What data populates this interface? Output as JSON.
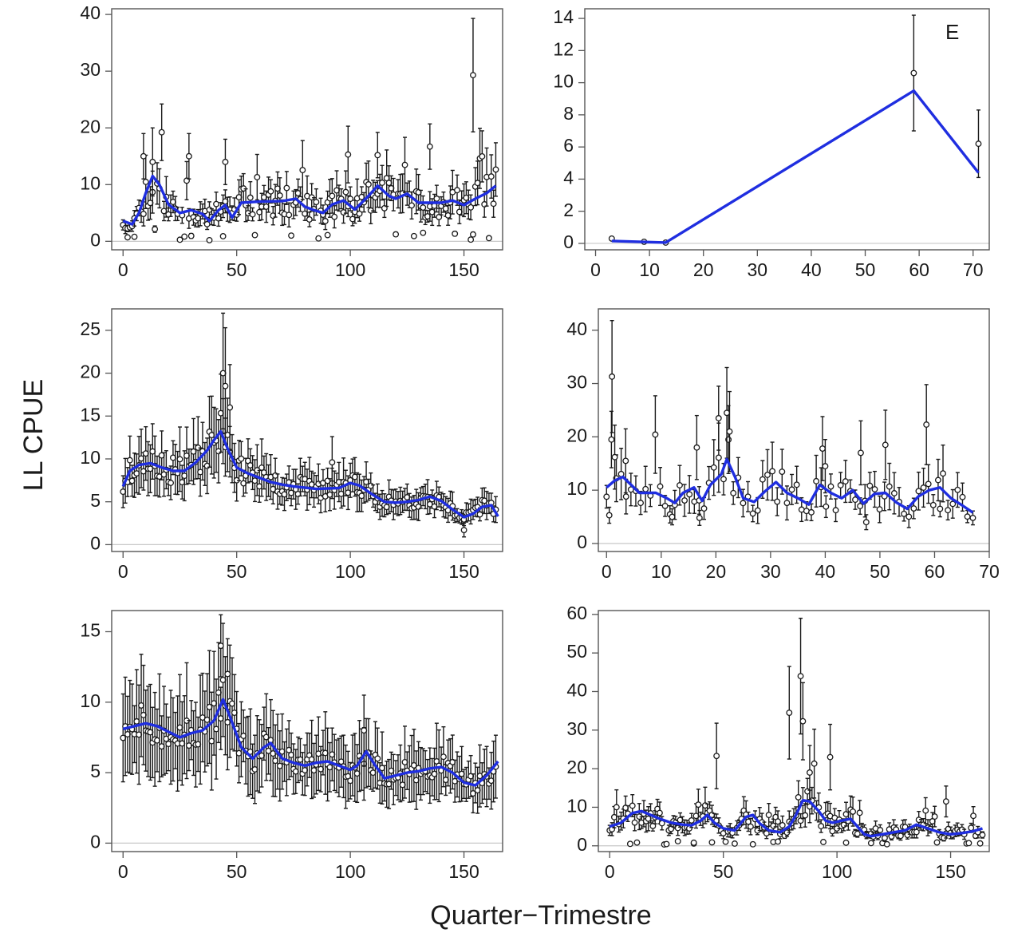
{
  "figure": {
    "ylabel": "LL CPUE",
    "xlabel": "Quarter−Trimestre"
  },
  "colors": {
    "trend": "#1f2ee0",
    "points": "#1a1a1a",
    "zero_line": "#c8c8c8",
    "frame": "#555555"
  },
  "chart_data": [
    {
      "id": "panel-1",
      "type": "scatter",
      "letter": "",
      "xlim": [
        -5,
        167
      ],
      "ylim": [
        -1.5,
        41
      ],
      "xticks": [
        0,
        50,
        100,
        150
      ],
      "yticks": [
        0,
        10,
        20,
        30,
        40
      ],
      "seed": 11,
      "points": {
        "n": 165,
        "xmax": 164,
        "noise": 0.38,
        "outlier_freq": 0.05,
        "err": 0.38,
        "low_freq": 0.07
      },
      "trend": [
        [
          0,
          3.6
        ],
        [
          4,
          3.0
        ],
        [
          7,
          5.0
        ],
        [
          10,
          8.5
        ],
        [
          13,
          11.5
        ],
        [
          16,
          10.0
        ],
        [
          20,
          6.5
        ],
        [
          25,
          5.0
        ],
        [
          30,
          5.5
        ],
        [
          35,
          4.8
        ],
        [
          38,
          3.6
        ],
        [
          42,
          5.5
        ],
        [
          45,
          6.4
        ],
        [
          48,
          4.2
        ],
        [
          52,
          6.8
        ],
        [
          60,
          7.0
        ],
        [
          70,
          7.1
        ],
        [
          76,
          7.5
        ],
        [
          80,
          6.1
        ],
        [
          84,
          5.5
        ],
        [
          88,
          5.0
        ],
        [
          92,
          6.5
        ],
        [
          97,
          7.2
        ],
        [
          102,
          5.6
        ],
        [
          108,
          8.0
        ],
        [
          112,
          9.8
        ],
        [
          117,
          8.0
        ],
        [
          120,
          7.5
        ],
        [
          125,
          8.4
        ],
        [
          130,
          6.8
        ],
        [
          140,
          6.8
        ],
        [
          145,
          7.2
        ],
        [
          150,
          6.4
        ],
        [
          155,
          7.5
        ],
        [
          160,
          8.5
        ],
        [
          164,
          9.8
        ]
      ],
      "highlights": [
        [
          154,
          29.3,
          10
        ],
        [
          135,
          16.7,
          4
        ],
        [
          99,
          15.3,
          5
        ],
        [
          112,
          15.2,
          4
        ],
        [
          29,
          15.0,
          4
        ],
        [
          9,
          15.0,
          4
        ],
        [
          13,
          14.0,
          6
        ],
        [
          45,
          14.0,
          4
        ],
        [
          153,
          0.3,
          0
        ],
        [
          38,
          0.2,
          0
        ],
        [
          2,
          0.7,
          0
        ],
        [
          5,
          0.8,
          0
        ],
        [
          44,
          0.9,
          0
        ],
        [
          90,
          1.1,
          0
        ],
        [
          132,
          1.5,
          0
        ]
      ]
    },
    {
      "id": "panel-2",
      "type": "scatter",
      "letter": "E",
      "xlim": [
        -2,
        73
      ],
      "ylim": [
        -0.4,
        14.6
      ],
      "xticks": [
        0,
        10,
        20,
        30,
        40,
        50,
        60,
        70
      ],
      "yticks": [
        0,
        2,
        4,
        6,
        8,
        10,
        12,
        14
      ],
      "seed": 0,
      "points": {
        "n": 0
      },
      "trend": [
        [
          3,
          0.15
        ],
        [
          13,
          0.05
        ],
        [
          59,
          9.5
        ],
        [
          71,
          4.4
        ]
      ],
      "highlights": [
        [
          3,
          0.3,
          0
        ],
        [
          9,
          0.1,
          0
        ],
        [
          13,
          0.05,
          0
        ],
        [
          59,
          10.6,
          3.6
        ],
        [
          71,
          6.2,
          2.1
        ]
      ]
    },
    {
      "id": "panel-3",
      "type": "scatter",
      "letter": "",
      "xlim": [
        -5,
        167
      ],
      "ylim": [
        -0.8,
        27.5
      ],
      "xticks": [
        0,
        50,
        100,
        150
      ],
      "yticks": [
        0,
        5,
        10,
        15,
        20,
        25
      ],
      "seed": 23,
      "points": {
        "n": 165,
        "xmax": 164,
        "noise": 0.18,
        "outlier_freq": 0.0,
        "err": 0.32,
        "low_freq": 0.0
      },
      "trend": [
        [
          0,
          6.8
        ],
        [
          3,
          8.6
        ],
        [
          7,
          9.3
        ],
        [
          12,
          9.5
        ],
        [
          17,
          9.0
        ],
        [
          22,
          8.6
        ],
        [
          27,
          8.6
        ],
        [
          32,
          9.6
        ],
        [
          37,
          11.0
        ],
        [
          40,
          12.2
        ],
        [
          43,
          13.2
        ],
        [
          46,
          11.2
        ],
        [
          50,
          9.0
        ],
        [
          55,
          8.3
        ],
        [
          60,
          7.8
        ],
        [
          65,
          7.3
        ],
        [
          70,
          7.0
        ],
        [
          75,
          6.8
        ],
        [
          85,
          6.5
        ],
        [
          95,
          6.6
        ],
        [
          100,
          7.2
        ],
        [
          104,
          6.9
        ],
        [
          110,
          5.8
        ],
        [
          115,
          5.0
        ],
        [
          120,
          4.9
        ],
        [
          125,
          5.0
        ],
        [
          130,
          5.2
        ],
        [
          135,
          5.6
        ],
        [
          140,
          5.1
        ],
        [
          145,
          4.1
        ],
        [
          150,
          3.2
        ],
        [
          154,
          3.6
        ],
        [
          158,
          4.4
        ],
        [
          162,
          4.6
        ],
        [
          165,
          3.3
        ]
      ],
      "highlights": [
        [
          44,
          20.0,
          7
        ],
        [
          45,
          18.5,
          6.8
        ],
        [
          47,
          16.0,
          5
        ],
        [
          92,
          9.6,
          3
        ],
        [
          150,
          1.7,
          0.8
        ]
      ]
    },
    {
      "id": "panel-4",
      "type": "scatter",
      "letter": "",
      "xlim": [
        -1.5,
        70
      ],
      "ylim": [
        -1.5,
        44
      ],
      "xticks": [
        0,
        10,
        20,
        30,
        40,
        50,
        60,
        70
      ],
      "yticks": [
        0,
        10,
        20,
        30,
        40
      ],
      "seed": 37,
      "points": {
        "n": 75,
        "xmax": 66,
        "noise": 0.33,
        "outlier_freq": 0.05,
        "err": 0.35,
        "low_freq": 0.0
      },
      "trend": [
        [
          0,
          10.5
        ],
        [
          1.5,
          11.8
        ],
        [
          3,
          12.5
        ],
        [
          4.5,
          11.0
        ],
        [
          6,
          9.5
        ],
        [
          9,
          9.5
        ],
        [
          11,
          8.5
        ],
        [
          12.5,
          7.6
        ],
        [
          14,
          9.5
        ],
        [
          16,
          10.5
        ],
        [
          17.5,
          8.0
        ],
        [
          19,
          11.0
        ],
        [
          21,
          13.0
        ],
        [
          22,
          15.8
        ],
        [
          23.5,
          12.5
        ],
        [
          25,
          8.5
        ],
        [
          27,
          7.8
        ],
        [
          29,
          9.8
        ],
        [
          31,
          11.5
        ],
        [
          33,
          9.5
        ],
        [
          35,
          8.5
        ],
        [
          37,
          7.3
        ],
        [
          39,
          11.0
        ],
        [
          41,
          9.5
        ],
        [
          43,
          8.5
        ],
        [
          45,
          10.0
        ],
        [
          47,
          7.5
        ],
        [
          49,
          9.3
        ],
        [
          51,
          9.5
        ],
        [
          53,
          7.7
        ],
        [
          55,
          6.5
        ],
        [
          57,
          8.8
        ],
        [
          59,
          10.0
        ],
        [
          61,
          10.5
        ],
        [
          63,
          8.5
        ],
        [
          65,
          7.2
        ],
        [
          67,
          5.8
        ]
      ],
      "highlights": [
        [
          1,
          31.3,
          10.5
        ],
        [
          1.5,
          16.2,
          6
        ],
        [
          3.5,
          15.5,
          6
        ],
        [
          16.5,
          18.0,
          6
        ],
        [
          20.5,
          23.5,
          6
        ],
        [
          22,
          24.5,
          8.5
        ],
        [
          22.5,
          21.0,
          7.5
        ],
        [
          39.5,
          17.8,
          6
        ],
        [
          40,
          14.5,
          5
        ],
        [
          46.5,
          17.0,
          6
        ],
        [
          51,
          18.5,
          6.5
        ],
        [
          58.5,
          22.3,
          7.5
        ],
        [
          0.5,
          5.3,
          1.5
        ],
        [
          12,
          5.0,
          1.5
        ],
        [
          17,
          4.8,
          1.4
        ],
        [
          47.5,
          4.0,
          1.4
        ],
        [
          61,
          6.5,
          1.5
        ],
        [
          67,
          4.8,
          1.3
        ]
      ]
    },
    {
      "id": "panel-5",
      "type": "scatter",
      "letter": "",
      "xlim": [
        -5,
        167
      ],
      "ylim": [
        -0.6,
        16.5
      ],
      "xticks": [
        0,
        50,
        100,
        150
      ],
      "yticks": [
        0,
        5,
        10,
        15
      ],
      "seed": 51,
      "points": {
        "n": 165,
        "xmax": 164,
        "noise": 0.16,
        "outlier_freq": 0.0,
        "err": 0.4,
        "low_freq": 0.0
      },
      "trend": [
        [
          0,
          8.1
        ],
        [
          5,
          8.3
        ],
        [
          10,
          8.5
        ],
        [
          15,
          8.3
        ],
        [
          20,
          7.9
        ],
        [
          25,
          7.5
        ],
        [
          30,
          7.8
        ],
        [
          35,
          8.0
        ],
        [
          40,
          8.7
        ],
        [
          44,
          10.2
        ],
        [
          47,
          9.0
        ],
        [
          52,
          6.8
        ],
        [
          57,
          6.0
        ],
        [
          62,
          6.8
        ],
        [
          65,
          7.1
        ],
        [
          70,
          6.0
        ],
        [
          75,
          5.7
        ],
        [
          80,
          5.5
        ],
        [
          85,
          5.7
        ],
        [
          90,
          5.8
        ],
        [
          95,
          5.5
        ],
        [
          100,
          5.2
        ],
        [
          103,
          5.5
        ],
        [
          107,
          6.5
        ],
        [
          111,
          5.5
        ],
        [
          115,
          4.6
        ],
        [
          120,
          4.8
        ],
        [
          125,
          5.0
        ],
        [
          130,
          5.1
        ],
        [
          135,
          5.3
        ],
        [
          140,
          5.4
        ],
        [
          145,
          5.0
        ],
        [
          150,
          4.3
        ],
        [
          155,
          4.1
        ],
        [
          160,
          4.8
        ],
        [
          165,
          5.8
        ]
      ],
      "highlights": [
        [
          43,
          14.0,
          2.2
        ],
        [
          46,
          12.0,
          2.5
        ],
        [
          106,
          8.0,
          2.5
        ]
      ]
    },
    {
      "id": "panel-6",
      "type": "scatter",
      "letter": "",
      "xlim": [
        -5,
        167
      ],
      "ylim": [
        -1.5,
        61
      ],
      "xticks": [
        0,
        50,
        100,
        150
      ],
      "yticks": [
        0,
        10,
        20,
        30,
        40,
        50,
        60
      ],
      "seed": 71,
      "points": {
        "n": 165,
        "xmax": 164,
        "noise": 0.42,
        "outlier_freq": 0.04,
        "err": 0.38,
        "low_freq": 0.08
      },
      "trend": [
        [
          0,
          5.0
        ],
        [
          5,
          6.0
        ],
        [
          10,
          8.5
        ],
        [
          14,
          9.0
        ],
        [
          18,
          8.0
        ],
        [
          22,
          7.0
        ],
        [
          27,
          6.0
        ],
        [
          32,
          5.5
        ],
        [
          36,
          5.3
        ],
        [
          40,
          6.5
        ],
        [
          43,
          8.0
        ],
        [
          46,
          6.0
        ],
        [
          50,
          4.5
        ],
        [
          55,
          4.0
        ],
        [
          60,
          7.5
        ],
        [
          63,
          8.0
        ],
        [
          66,
          5.8
        ],
        [
          70,
          4.0
        ],
        [
          75,
          3.5
        ],
        [
          79,
          5.0
        ],
        [
          82,
          8.0
        ],
        [
          85,
          11.8
        ],
        [
          88,
          11.5
        ],
        [
          92,
          9.0
        ],
        [
          95,
          6.5
        ],
        [
          98,
          6.0
        ],
        [
          102,
          6.5
        ],
        [
          106,
          7.0
        ],
        [
          109,
          5.0
        ],
        [
          112,
          3.0
        ],
        [
          115,
          2.5
        ],
        [
          120,
          3.0
        ],
        [
          125,
          3.5
        ],
        [
          130,
          4.0
        ],
        [
          135,
          5.5
        ],
        [
          140,
          4.5
        ],
        [
          145,
          3.5
        ],
        [
          150,
          3.0
        ],
        [
          155,
          3.3
        ],
        [
          160,
          3.8
        ],
        [
          164,
          4.5
        ]
      ],
      "highlights": [
        [
          84,
          44.0,
          15
        ],
        [
          79,
          34.5,
          12
        ],
        [
          85,
          32.3,
          10
        ],
        [
          47,
          23.3,
          8.5
        ],
        [
          97,
          23.0,
          8.5
        ],
        [
          88,
          19.0,
          7
        ],
        [
          148,
          11.5,
          4
        ],
        [
          37,
          0.8,
          0
        ],
        [
          45,
          0.9,
          0
        ],
        [
          30,
          1.2,
          0
        ],
        [
          104,
          0.8,
          0
        ],
        [
          115,
          0.7,
          0
        ],
        [
          72,
          1.0,
          0
        ],
        [
          74,
          1.1,
          0
        ]
      ]
    }
  ]
}
